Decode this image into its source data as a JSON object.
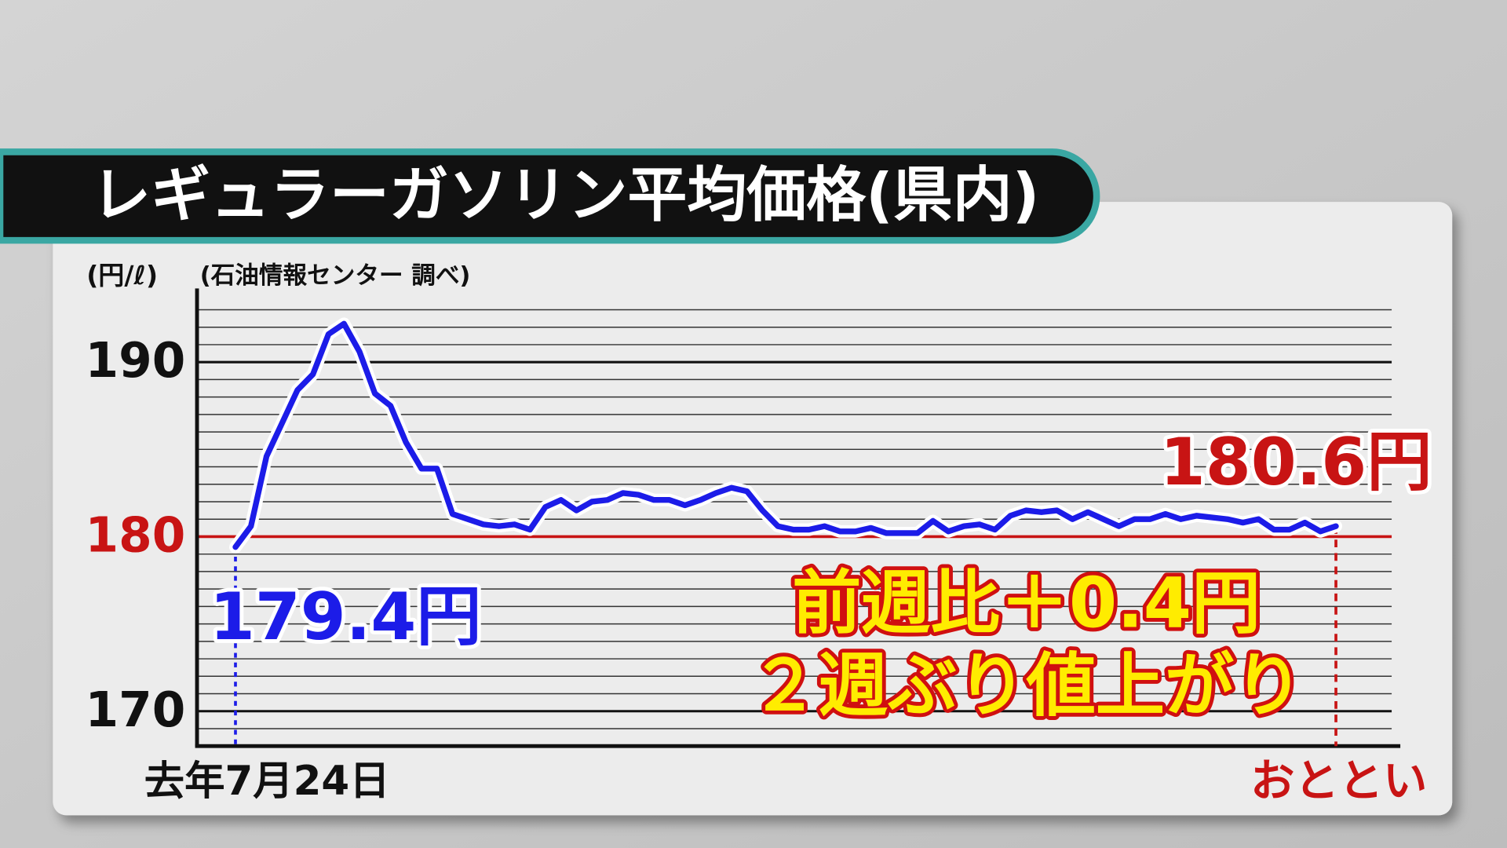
{
  "chart_data": {
    "type": "line",
    "title": "レギュラーガソリン平均価格(県内)",
    "y_unit": "(円/ℓ)",
    "source": "(石油情報センター 調べ)",
    "categories": [
      "去年7月24日",
      null,
      null,
      null,
      null,
      null,
      null,
      null,
      null,
      null,
      null,
      null,
      null,
      null,
      null,
      null,
      null,
      null,
      null,
      null,
      null,
      null,
      null,
      null,
      null,
      null,
      null,
      null,
      null,
      null,
      null,
      null,
      null,
      null,
      null,
      null,
      null,
      null,
      null,
      null,
      null,
      null,
      null,
      null,
      null,
      null,
      null,
      null,
      null,
      null,
      null,
      null,
      null,
      null,
      null,
      null,
      null,
      null,
      null,
      null,
      null,
      null,
      null,
      null,
      null,
      null,
      null,
      null,
      null,
      null,
      null,
      "おととい"
    ],
    "values": [
      179.4,
      180.6,
      184.6,
      186.5,
      188.4,
      189.3,
      191.6,
      192.2,
      190.6,
      188.2,
      187.5,
      185.4,
      183.9,
      183.9,
      181.3,
      181.0,
      180.7,
      180.6,
      180.7,
      180.4,
      181.7,
      182.1,
      181.5,
      182.0,
      182.1,
      182.5,
      182.4,
      182.1,
      182.1,
      181.8,
      182.1,
      182.5,
      182.8,
      182.6,
      181.5,
      180.6,
      180.4,
      180.4,
      180.6,
      180.3,
      180.3,
      180.5,
      180.2,
      180.2,
      180.2,
      180.9,
      180.3,
      180.6,
      180.7,
      180.4,
      181.2,
      181.5,
      181.4,
      181.5,
      181.0,
      181.4,
      181.0,
      180.6,
      181.0,
      181.0,
      181.3,
      181.0,
      181.2,
      181.1,
      181.0,
      180.8,
      181.0,
      180.4,
      180.4,
      180.8,
      180.3,
      180.6
    ],
    "value_labels": [
      "179.4円",
      null,
      null,
      null,
      null,
      null,
      null,
      null,
      null,
      null,
      null,
      null,
      null,
      null,
      null,
      null,
      null,
      null,
      null,
      null,
      null,
      null,
      null,
      null,
      null,
      null,
      null,
      null,
      null,
      null,
      null,
      null,
      null,
      null,
      null,
      null,
      null,
      null,
      null,
      null,
      null,
      null,
      null,
      null,
      null,
      null,
      null,
      null,
      null,
      null,
      null,
      null,
      null,
      null,
      null,
      null,
      null,
      null,
      null,
      null,
      null,
      null,
      null,
      null,
      null,
      null,
      null,
      null,
      null,
      null,
      null,
      "180.6円"
    ],
    "color": "#1c1ce8",
    "ylim": [
      168,
      194
    ],
    "yticks": [
      170,
      180,
      190
    ],
    "minor_yticks": [
      169,
      171,
      172,
      173,
      174,
      175,
      176,
      177,
      178,
      179,
      181,
      182,
      183,
      184,
      185,
      186,
      187,
      188,
      189,
      191,
      192,
      193
    ],
    "grid": true,
    "reference_line": {
      "value": 180,
      "color": "#c81414"
    },
    "annotations": [
      "前週比＋0.4円",
      "２週ぶり値上がり"
    ]
  }
}
